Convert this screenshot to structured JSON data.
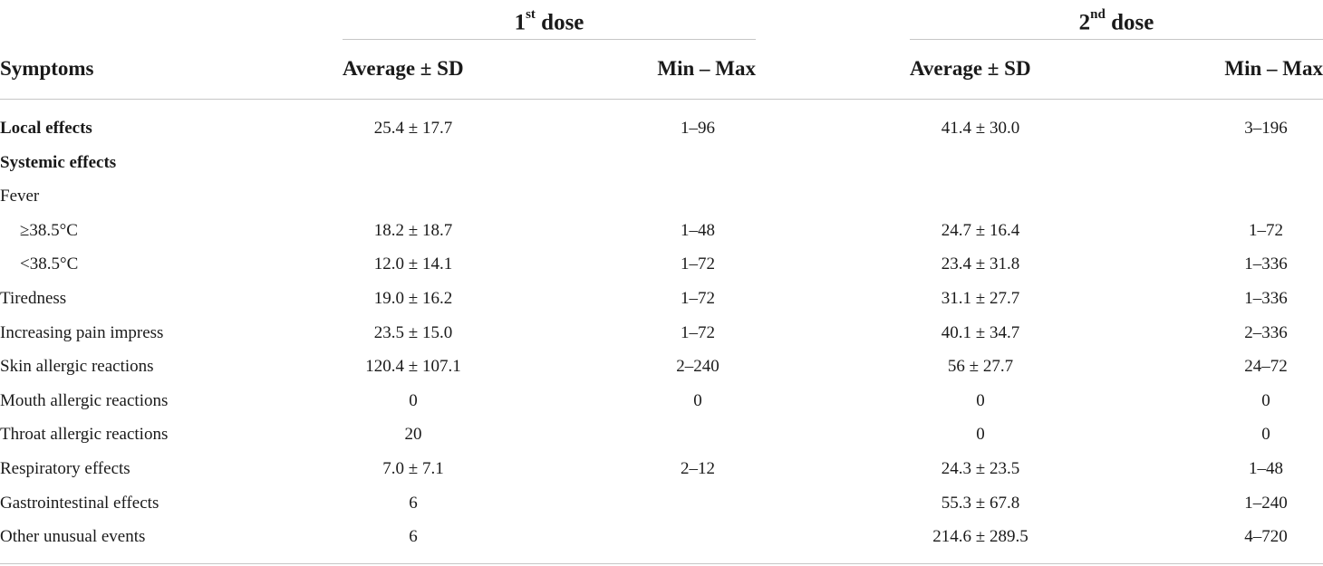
{
  "header": {
    "dose1": {
      "num": "1",
      "sup": "st",
      "word": "dose"
    },
    "dose2": {
      "num": "2",
      "sup": "nd",
      "word": "dose"
    },
    "col_symptoms": "Symptoms",
    "col_avg_1": "Average ± SD",
    "col_range_1": "Min – Max",
    "col_avg_2": "Average ± SD",
    "col_range_2": "Min – Max"
  },
  "rows": [
    {
      "label": "Local effects",
      "style": "bold",
      "avg1": "25.4 ± 17.7",
      "range1": "1–96",
      "avg2": "41.4 ± 30.0",
      "range2": "3–196"
    },
    {
      "label": "Systemic effects",
      "style": "bold",
      "avg1": "",
      "range1": "",
      "avg2": "",
      "range2": ""
    },
    {
      "label": "Fever",
      "style": "normal",
      "avg1": "",
      "range1": "",
      "avg2": "",
      "range2": ""
    },
    {
      "label": "≥38.5°C",
      "style": "indent",
      "avg1": "18.2 ± 18.7",
      "range1": "1–48",
      "avg2": "24.7 ± 16.4",
      "range2": "1–72"
    },
    {
      "label": "<38.5°C",
      "style": "indent",
      "avg1": "12.0 ± 14.1",
      "range1": "1–72",
      "avg2": "23.4 ± 31.8",
      "range2": "1–336"
    },
    {
      "label": "Tiredness",
      "style": "normal",
      "avg1": "19.0 ± 16.2",
      "range1": "1–72",
      "avg2": "31.1 ± 27.7",
      "range2": "1–336"
    },
    {
      "label": "Increasing pain impress",
      "style": "normal",
      "avg1": "23.5 ± 15.0",
      "range1": "1–72",
      "avg2": "40.1 ± 34.7",
      "range2": "2–336"
    },
    {
      "label": "Skin allergic reactions",
      "style": "normal",
      "avg1": "120.4 ± 107.1",
      "range1": "2–240",
      "avg2": "56 ± 27.7",
      "range2": "24–72"
    },
    {
      "label": "Mouth allergic reactions",
      "style": "normal",
      "avg1": "0",
      "range1": "0",
      "avg2": "0",
      "range2": "0"
    },
    {
      "label": "Throat allergic reactions",
      "style": "normal",
      "avg1": "20",
      "range1": "",
      "avg2": "0",
      "range2": "0"
    },
    {
      "label": "Respiratory effects",
      "style": "normal",
      "avg1": "7.0 ± 7.1",
      "range1": "2–12",
      "avg2": "24.3 ± 23.5",
      "range2": "1–48"
    },
    {
      "label": "Gastrointestinal effects",
      "style": "normal",
      "avg1": "6",
      "range1": "",
      "avg2": "55.3 ± 67.8",
      "range2": "1–240"
    },
    {
      "label": "Other unusual events",
      "style": "normal",
      "avg1": "6",
      "range1": "",
      "avg2": "214.6 ± 289.5",
      "range2": "4–720"
    }
  ]
}
